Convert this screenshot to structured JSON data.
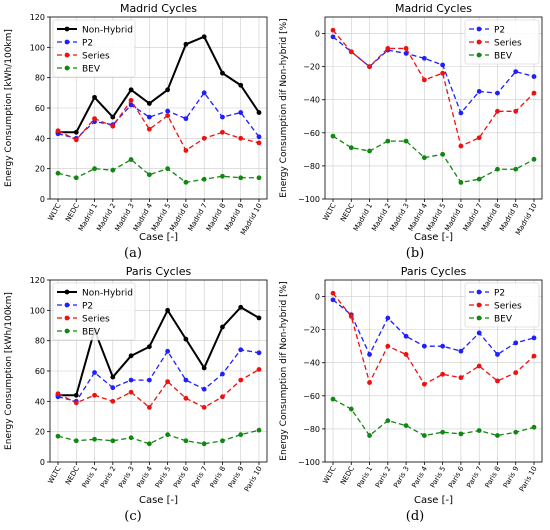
{
  "chart_data": [
    {
      "type": "line",
      "title": "Madrid Cycles",
      "xlabel": "Case [-]",
      "ylabel": "Energy Consumption [kWh/100km]",
      "ylim": [
        0,
        120
      ],
      "yticks": [
        0,
        20,
        40,
        60,
        80,
        100,
        120
      ],
      "grid": true,
      "legend": "top-left",
      "categories": [
        "WLTC",
        "NEDC",
        "Madrid 1",
        "Madrid 2",
        "Madrid 3",
        "Madrid 4",
        "Madrid 5",
        "Madrid 6",
        "Madrid 7",
        "Madrid 8",
        "Madrid 9",
        "Madrid 10"
      ],
      "series": [
        {
          "name": "Non-Hybrid",
          "color": "#000000",
          "style": "solid",
          "values": [
            44,
            44,
            67,
            54,
            72,
            63,
            72,
            102,
            107,
            83,
            75,
            57
          ]
        },
        {
          "name": "P2",
          "color": "#1f1fff",
          "style": "dashed",
          "values": [
            43,
            40,
            51,
            49,
            62,
            54,
            58,
            53,
            70,
            54,
            57,
            41
          ]
        },
        {
          "name": "Series",
          "color": "#ee1111",
          "style": "dashed",
          "values": [
            45,
            39,
            53,
            48,
            65,
            46,
            55,
            32,
            40,
            44,
            40,
            37
          ]
        },
        {
          "name": "BEV",
          "color": "#118811",
          "style": "dashed",
          "values": [
            17,
            14,
            20,
            19,
            26,
            16,
            20,
            11,
            13,
            15,
            14,
            14
          ]
        }
      ],
      "caption": "(a)"
    },
    {
      "type": "line",
      "title": "Madrid Cycles",
      "xlabel": "Case [-]",
      "ylabel": "Energy Consumption dif Non-hybrid [%]",
      "ylim": [
        -100,
        10
      ],
      "yticks": [
        -100,
        -80,
        -60,
        -40,
        -20,
        0
      ],
      "grid": true,
      "legend": "top-right",
      "categories": [
        "WLTC",
        "NEDC",
        "Madrid 1",
        "Madrid 2",
        "Madrid 3",
        "Madrid 4",
        "Madrid 5",
        "Madrid 6",
        "Madrid 7",
        "Madrid 8",
        "Madrid 9",
        "Madrid 10"
      ],
      "series": [
        {
          "name": "P2",
          "color": "#1f1fff",
          "style": "dashed",
          "values": [
            -2,
            -11,
            -20,
            -10,
            -12,
            -15,
            -19,
            -48,
            -35,
            -36,
            -23,
            -26
          ]
        },
        {
          "name": "Series",
          "color": "#ee1111",
          "style": "dashed",
          "values": [
            2,
            -11,
            -20,
            -9,
            -9,
            -28,
            -24,
            -68,
            -63,
            -47,
            -47,
            -36
          ]
        },
        {
          "name": "BEV",
          "color": "#118811",
          "style": "dashed",
          "values": [
            -62,
            -69,
            -71,
            -65,
            -65,
            -75,
            -73,
            -90,
            -88,
            -82,
            -82,
            -76
          ]
        }
      ],
      "caption": "(b)"
    },
    {
      "type": "line",
      "title": "Paris Cycles",
      "xlabel": "Case [-]",
      "ylabel": "Energy Consumption [kWh/100km]",
      "ylim": [
        0,
        120
      ],
      "yticks": [
        0,
        20,
        40,
        60,
        80,
        100,
        120
      ],
      "grid": true,
      "legend": "top-left",
      "categories": [
        "WLTC",
        "NEDC",
        "Paris 1",
        "Paris 2",
        "Paris 3",
        "Paris 4",
        "Paris 5",
        "Paris 6",
        "Paris 7",
        "Paris 8",
        "Paris 9",
        "Paris 10"
      ],
      "series": [
        {
          "name": "Non-Hybrid",
          "color": "#000000",
          "style": "solid",
          "values": [
            44,
            44,
            87,
            56,
            70,
            76,
            100,
            81,
            62,
            89,
            102,
            95
          ]
        },
        {
          "name": "P2",
          "color": "#1f1fff",
          "style": "dashed",
          "values": [
            43,
            40,
            59,
            49,
            54,
            54,
            73,
            54,
            48,
            58,
            74,
            72
          ]
        },
        {
          "name": "Series",
          "color": "#ee1111",
          "style": "dashed",
          "values": [
            45,
            39,
            44,
            40,
            46,
            36,
            53,
            42,
            36,
            43,
            54,
            61
          ]
        },
        {
          "name": "BEV",
          "color": "#118811",
          "style": "dashed",
          "values": [
            17,
            14,
            15,
            14,
            16,
            12,
            18,
            14,
            12,
            14,
            18,
            21
          ]
        }
      ],
      "caption": "(c)"
    },
    {
      "type": "line",
      "title": "Paris Cycles",
      "xlabel": "Case [-]",
      "ylabel": "Energy Consumption dif Non-hybrid [%]",
      "ylim": [
        -100,
        10
      ],
      "yticks": [
        -100,
        -80,
        -60,
        -40,
        -20,
        0
      ],
      "grid": true,
      "legend": "top-right",
      "categories": [
        "WLTC",
        "NEDC",
        "Paris 1",
        "Paris 2",
        "Paris 3",
        "Paris 4",
        "Paris 5",
        "Paris 6",
        "Paris 7",
        "Paris 8",
        "Paris 9",
        "Paris 10"
      ],
      "series": [
        {
          "name": "P2",
          "color": "#1f1fff",
          "style": "dashed",
          "values": [
            -2,
            -11,
            -35,
            -13,
            -24,
            -30,
            -30,
            -33,
            -22,
            -35,
            -28,
            -25
          ]
        },
        {
          "name": "Series",
          "color": "#ee1111",
          "style": "dashed",
          "values": [
            2,
            -12,
            -52,
            -30,
            -35,
            -53,
            -47,
            -49,
            -42,
            -51,
            -46,
            -36
          ]
        },
        {
          "name": "BEV",
          "color": "#118811",
          "style": "dashed",
          "values": [
            -62,
            -68,
            -84,
            -75,
            -78,
            -84,
            -82,
            -83,
            -81,
            -84,
            -82,
            -79
          ]
        }
      ],
      "caption": "(d)"
    }
  ]
}
